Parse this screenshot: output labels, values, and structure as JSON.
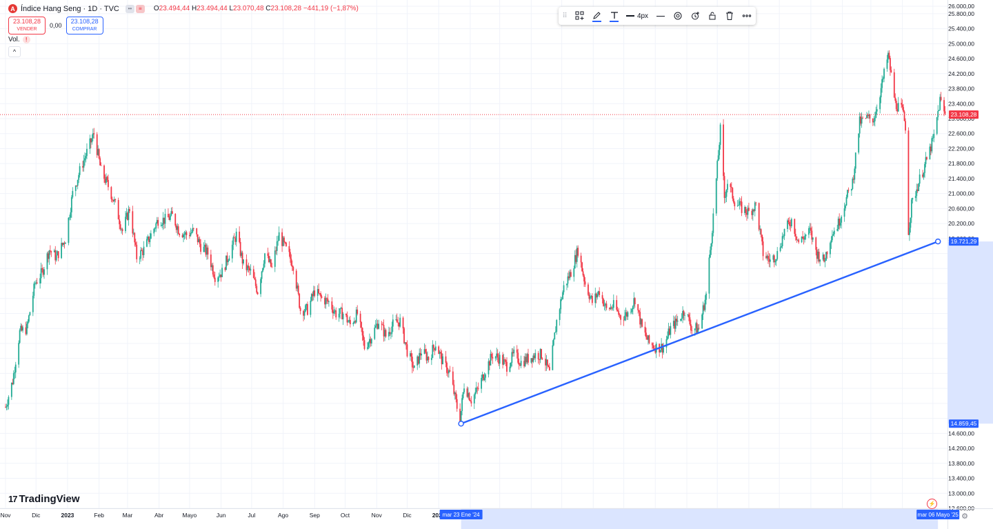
{
  "header": {
    "symbol_badge": "A",
    "title": "Índice Hang Seng · 1D · TVC",
    "ohlc": {
      "o_label": "O",
      "o": "23.494,44",
      "h_label": "H",
      "h": "23.494,44",
      "l_label": "L",
      "l": "23.070,48",
      "c_label": "C",
      "c": "23.108,28",
      "change": "−441,19 (−1,87%)"
    }
  },
  "trade": {
    "sell_value": "23.108,28",
    "sell_label": "VENDER",
    "spread": "0,00",
    "buy_value": "23.108,28",
    "buy_label": "COMPRAR"
  },
  "volume": {
    "label": "Vol.",
    "warning_glyph": "!"
  },
  "collapse_glyph": "^",
  "toolbar": {
    "width_label": "4px",
    "icons": [
      "drag-grip-icon",
      "object-tree-icon",
      "pencil-color-icon",
      "text-color-icon",
      "line-width-icon",
      "line-style-icon",
      "settings-icon",
      "alert-add-icon",
      "lock-icon",
      "trash-icon",
      "more-icon"
    ]
  },
  "branding": {
    "logo_text": "TradingView",
    "logo_mark": "17"
  },
  "colors": {
    "up": "#22ab94",
    "down": "#f23645",
    "trendline": "#2962ff",
    "last_price_label": "#f23645",
    "axis_highlight": "#2962ff",
    "axis_highlight_band": "#dbe5ff"
  },
  "chart_data": {
    "type": "candlestick",
    "symbol": "Índice Hang Seng",
    "interval": "1D",
    "ylim": [
      12600,
      26000
    ],
    "y_ticks": [
      12600,
      13000,
      13400,
      13800,
      14200,
      14600,
      15000,
      15400,
      15800,
      16200,
      16600,
      17000,
      17400,
      17800,
      18200,
      18600,
      19000,
      19400,
      19800,
      20200,
      20600,
      21000,
      21400,
      21800,
      22200,
      22600,
      23000,
      23400,
      23800,
      24200,
      24600,
      25000,
      25400,
      25800,
      26000
    ],
    "x_ticks": [
      "Nov",
      "Dic",
      "2023",
      "Feb",
      "Mar",
      "Abr",
      "Mayo",
      "Jun",
      "Jul",
      "Ago",
      "Sep",
      "Oct",
      "Nov",
      "Dic",
      "2024",
      "Feb",
      "Mar",
      "Abr",
      "Mayo",
      "Jun",
      "Jul",
      "Ago",
      "Sep",
      "Oct",
      "Nov",
      "Dic",
      "2025",
      "Feb",
      "Mar",
      "Abr",
      "Mayo"
    ],
    "x_range": [
      "2022-11-01",
      "2025-05-14"
    ],
    "last_price": 23108.28,
    "last_price_label": "23.108,28",
    "price_path": [
      [
        "2022-11-01",
        15300
      ],
      [
        "2022-11-08",
        16000
      ],
      [
        "2022-11-15",
        17300
      ],
      [
        "2022-11-22",
        17400
      ],
      [
        "2022-11-30",
        18600
      ],
      [
        "2022-12-07",
        18900
      ],
      [
        "2022-12-14",
        19500
      ],
      [
        "2022-12-21",
        19300
      ],
      [
        "2022-12-30",
        19800
      ],
      [
        "2023-01-06",
        21000
      ],
      [
        "2023-01-13",
        21600
      ],
      [
        "2023-01-20",
        22100
      ],
      [
        "2023-01-27",
        22600
      ],
      [
        "2023-02-03",
        21600
      ],
      [
        "2023-02-10",
        21200
      ],
      [
        "2023-02-17",
        20700
      ],
      [
        "2023-02-24",
        20000
      ],
      [
        "2023-03-03",
        20600
      ],
      [
        "2023-03-10",
        19300
      ],
      [
        "2023-03-17",
        19500
      ],
      [
        "2023-03-24",
        19900
      ],
      [
        "2023-03-31",
        20300
      ],
      [
        "2023-04-07",
        20300
      ],
      [
        "2023-04-14",
        20400
      ],
      [
        "2023-04-21",
        20000
      ],
      [
        "2023-04-28",
        19900
      ],
      [
        "2023-05-05",
        20000
      ],
      [
        "2023-05-12",
        19600
      ],
      [
        "2023-05-19",
        19400
      ],
      [
        "2023-05-26",
        18800
      ],
      [
        "2023-06-02",
        18900
      ],
      [
        "2023-06-09",
        19400
      ],
      [
        "2023-06-16",
        19900
      ],
      [
        "2023-06-23",
        19100
      ],
      [
        "2023-06-30",
        18900
      ],
      [
        "2023-07-07",
        18400
      ],
      [
        "2023-07-14",
        19400
      ],
      [
        "2023-07-21",
        19000
      ],
      [
        "2023-07-28",
        19900
      ],
      [
        "2023-08-04",
        19500
      ],
      [
        "2023-08-11",
        19100
      ],
      [
        "2023-08-18",
        17900
      ],
      [
        "2023-08-25",
        17900
      ],
      [
        "2023-09-01",
        18400
      ],
      [
        "2023-09-08",
        18200
      ],
      [
        "2023-09-15",
        18100
      ],
      [
        "2023-09-22",
        17800
      ],
      [
        "2023-09-29",
        17800
      ],
      [
        "2023-10-06",
        17500
      ],
      [
        "2023-10-13",
        17800
      ],
      [
        "2023-10-20",
        16900
      ],
      [
        "2023-10-27",
        17200
      ],
      [
        "2023-11-03",
        17600
      ],
      [
        "2023-11-10",
        17200
      ],
      [
        "2023-11-17",
        17500
      ],
      [
        "2023-11-24",
        17600
      ],
      [
        "2023-12-01",
        16800
      ],
      [
        "2023-12-08",
        16300
      ],
      [
        "2023-12-15",
        16800
      ],
      [
        "2023-12-22",
        16600
      ],
      [
        "2023-12-29",
        17000
      ],
      [
        "2024-01-05",
        16500
      ],
      [
        "2024-01-12",
        16200
      ],
      [
        "2024-01-19",
        15300
      ],
      [
        "2024-01-22",
        14970
      ],
      [
        "2024-01-26",
        15900
      ],
      [
        "2024-02-02",
        15500
      ],
      [
        "2024-02-09",
        15800
      ],
      [
        "2024-02-16",
        16300
      ],
      [
        "2024-02-23",
        16700
      ],
      [
        "2024-03-01",
        16600
      ],
      [
        "2024-03-08",
        16400
      ],
      [
        "2024-03-15",
        16700
      ],
      [
        "2024-03-22",
        16500
      ],
      [
        "2024-03-29",
        16600
      ],
      [
        "2024-04-05",
        16700
      ],
      [
        "2024-04-12",
        16700
      ],
      [
        "2024-04-19",
        16200
      ],
      [
        "2024-04-26",
        17600
      ],
      [
        "2024-05-03",
        18500
      ],
      [
        "2024-05-10",
        18900
      ],
      [
        "2024-05-17",
        19500
      ],
      [
        "2024-05-24",
        18600
      ],
      [
        "2024-05-31",
        18100
      ],
      [
        "2024-06-07",
        18400
      ],
      [
        "2024-06-14",
        17900
      ],
      [
        "2024-06-21",
        18000
      ],
      [
        "2024-06-28",
        17700
      ],
      [
        "2024-07-05",
        17800
      ],
      [
        "2024-07-12",
        18200
      ],
      [
        "2024-07-19",
        17400
      ],
      [
        "2024-07-26",
        17000
      ],
      [
        "2024-08-02",
        16900
      ],
      [
        "2024-08-09",
        16900
      ],
      [
        "2024-08-16",
        17400
      ],
      [
        "2024-08-23",
        17600
      ],
      [
        "2024-08-30",
        17900
      ],
      [
        "2024-09-06",
        17400
      ],
      [
        "2024-09-13",
        17400
      ],
      [
        "2024-09-20",
        18300
      ],
      [
        "2024-09-27",
        20400
      ],
      [
        "2024-10-04",
        22700
      ],
      [
        "2024-10-08",
        20900
      ],
      [
        "2024-10-11",
        21300
      ],
      [
        "2024-10-18",
        20800
      ],
      [
        "2024-10-25",
        20600
      ],
      [
        "2024-11-01",
        20500
      ],
      [
        "2024-11-08",
        20700
      ],
      [
        "2024-11-15",
        19400
      ],
      [
        "2024-11-22",
        19200
      ],
      [
        "2024-11-29",
        19400
      ],
      [
        "2024-12-06",
        20000
      ],
      [
        "2024-12-13",
        20300
      ],
      [
        "2024-12-20",
        19700
      ],
      [
        "2024-12-31",
        20000
      ],
      [
        "2025-01-07",
        19400
      ],
      [
        "2025-01-14",
        19200
      ],
      [
        "2025-01-21",
        19900
      ],
      [
        "2025-01-28",
        20200
      ],
      [
        "2025-02-04",
        20800
      ],
      [
        "2025-02-11",
        21300
      ],
      [
        "2025-02-18",
        22900
      ],
      [
        "2025-02-25",
        23000
      ],
      [
        "2025-03-04",
        23000
      ],
      [
        "2025-03-11",
        23800
      ],
      [
        "2025-03-18",
        24700
      ],
      [
        "2025-03-25",
        23400
      ],
      [
        "2025-04-01",
        23200
      ],
      [
        "2025-04-04",
        22800
      ],
      [
        "2025-04-07",
        20000
      ],
      [
        "2025-04-10",
        20700
      ],
      [
        "2025-04-17",
        21300
      ],
      [
        "2025-04-25",
        21900
      ],
      [
        "2025-05-02",
        22500
      ],
      [
        "2025-05-08",
        23500
      ],
      [
        "2025-05-13",
        23100
      ]
    ],
    "trendline": {
      "start": {
        "date": "2024-01-23",
        "price": 14859.45,
        "price_label": "14.859,45",
        "date_label": "mar 23 Ene '24"
      },
      "end": {
        "date": "2025-05-06",
        "price": 19721.29,
        "price_label": "19.721,29",
        "date_label": "mar 06 Mayo '25"
      }
    }
  }
}
